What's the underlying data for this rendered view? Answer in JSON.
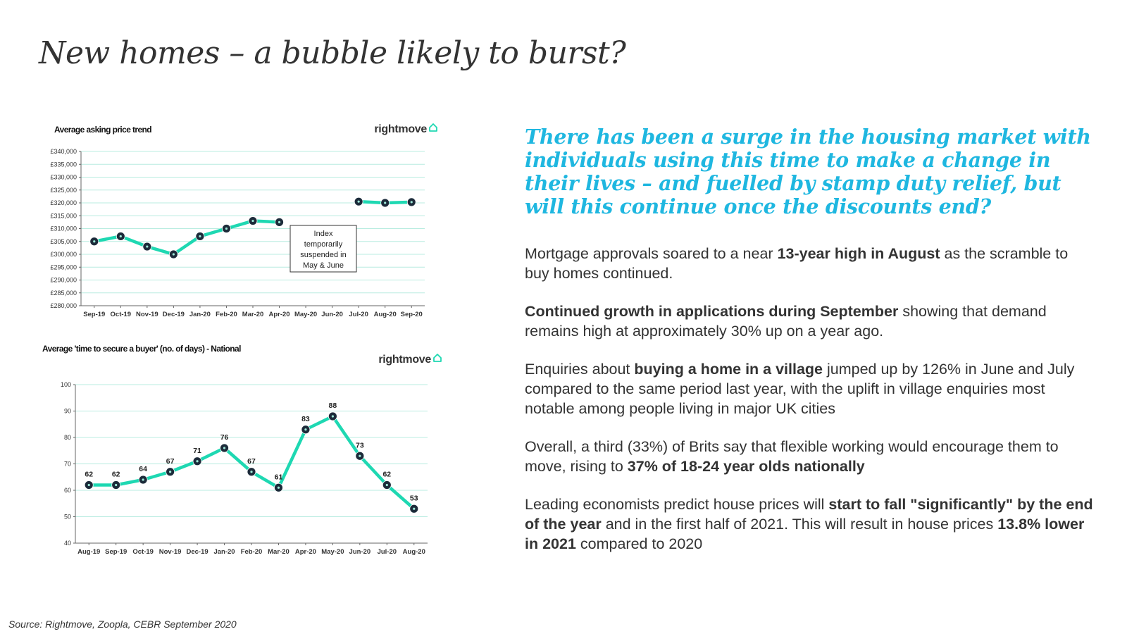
{
  "title": "New homes – a bubble likely to burst?",
  "headline": "There has been a surge in the housing market with individuals using this time to make a change in their lives – and fuelled by stamp duty relief, but will this continue once the discounts end?",
  "paragraphs": [
    [
      {
        "text": "Mortgage approvals soared to a near ",
        "bold": false
      },
      {
        "text": "13-year high in August",
        "bold": true
      },
      {
        "text": " as the scramble to buy homes continued.",
        "bold": false
      }
    ],
    [
      {
        "text": "Continued growth in applications during September",
        "bold": true
      },
      {
        "text": " showing that demand remains high at approximately 30% up on a year ago.",
        "bold": false
      }
    ],
    [
      {
        "text": "Enquiries about ",
        "bold": false
      },
      {
        "text": "buying a home in a village",
        "bold": true
      },
      {
        "text": " jumped up by 126% in June and July compared to the same period last year, with the uplift in village enquiries most notable among people living in major UK cities",
        "bold": false
      }
    ],
    [
      {
        "text": "Overall, a third (33%) of Brits say that flexible working would encourage them to move, rising to ",
        "bold": false
      },
      {
        "text": "37% of 18-24 year olds nationally",
        "bold": true
      }
    ],
    [
      {
        "text": "Leading economists predict house prices will ",
        "bold": false
      },
      {
        "text": "start to fall \"significantly\" by the end of the year",
        "bold": true
      },
      {
        "text": " and in the first half of 2021. This will result in house prices ",
        "bold": false
      },
      {
        "text": "13.8% lower in 2021",
        "bold": true
      },
      {
        "text": " compared to 2020",
        "bold": false
      }
    ]
  ],
  "source": "Source: Rightmove, Zoopla, CEBR September 2020",
  "colors": {
    "line": "#1ed8b2",
    "marker": "#1c2b3a",
    "grid": "#b8ece0",
    "headline": "#1fb7e0",
    "brand_icon": "#1ed8b2"
  },
  "chart_data": [
    {
      "type": "line",
      "title": "Average asking price trend",
      "brand": "rightmove",
      "categories": [
        "Sep-19",
        "Oct-19",
        "Nov-19",
        "Dec-19",
        "Jan-20",
        "Feb-20",
        "Mar-20",
        "Apr-20",
        "May-20",
        "Jun-20",
        "Jul-20",
        "Aug-20",
        "Sep-20"
      ],
      "values": [
        305000,
        307000,
        303000,
        300000,
        307000,
        310000,
        313000,
        312500,
        null,
        null,
        320500,
        320000,
        320300
      ],
      "ylim": [
        280000,
        340000
      ],
      "ystep": 5000,
      "ytick_labels": [
        "£280,000",
        "£285,000",
        "£290,000",
        "£295,000",
        "£300,000",
        "£305,000",
        "£310,000",
        "£315,000",
        "£320,000",
        "£325,000",
        "£330,000",
        "£335,000",
        "£340,000"
      ],
      "annotation": [
        "Index",
        "temporarily",
        "suspended in",
        "May & June"
      ],
      "show_data_labels": false,
      "grid": true
    },
    {
      "type": "line",
      "title": "Average 'time to secure a buyer' (no. of days) - National",
      "brand": "rightmove",
      "categories": [
        "Aug-19",
        "Sep-19",
        "Oct-19",
        "Nov-19",
        "Dec-19",
        "Jan-20",
        "Feb-20",
        "Mar-20",
        "Apr-20",
        "May-20",
        "Jun-20",
        "Jul-20",
        "Aug-20"
      ],
      "values": [
        62,
        62,
        64,
        67,
        71,
        76,
        67,
        61,
        83,
        88,
        73,
        62,
        53
      ],
      "ylim": [
        40,
        100
      ],
      "ystep": 10,
      "ytick_labels": [
        "40",
        "50",
        "60",
        "70",
        "80",
        "90",
        "100"
      ],
      "show_data_labels": true,
      "grid": true
    }
  ]
}
